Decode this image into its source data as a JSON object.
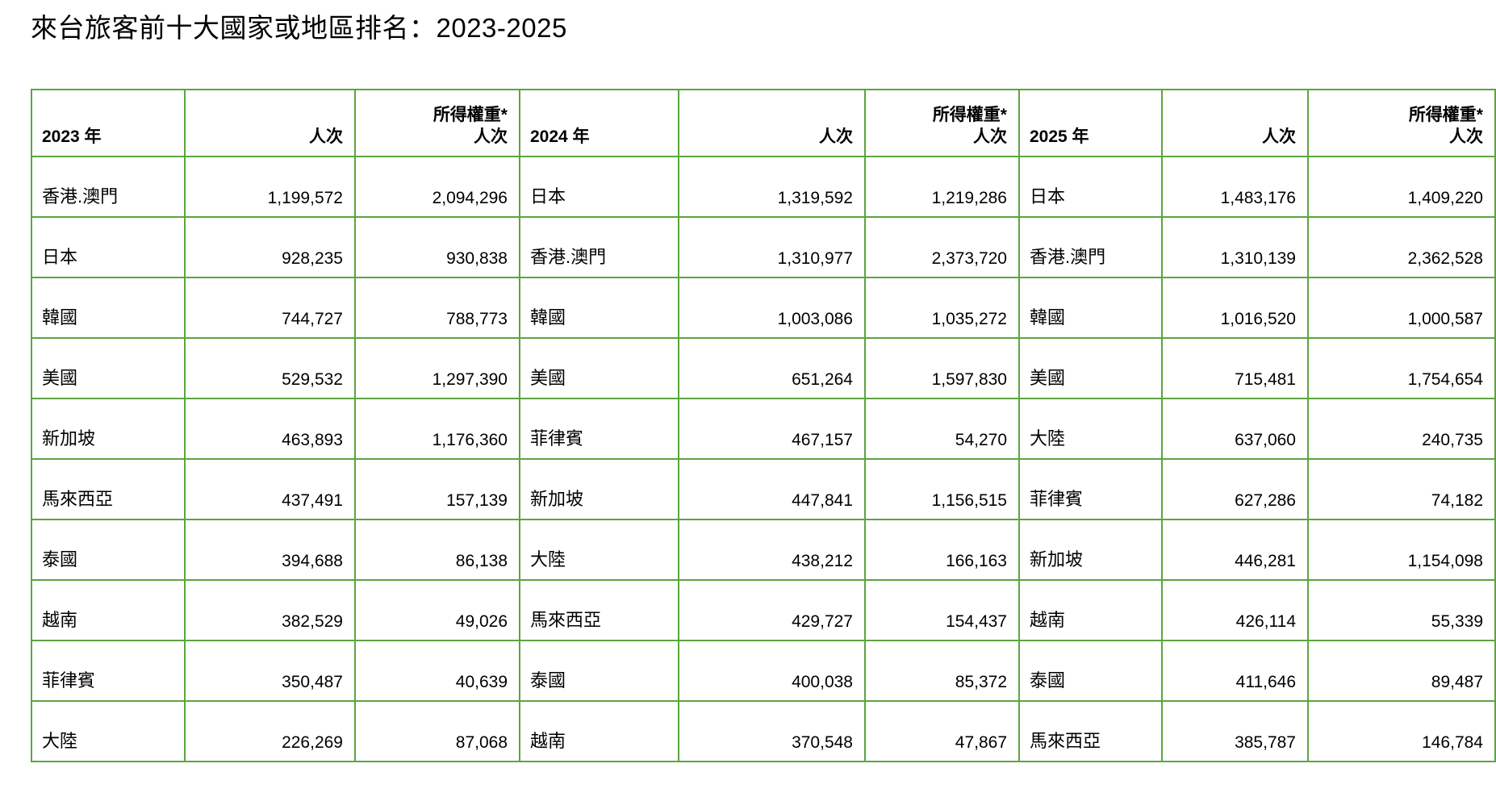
{
  "title": "來台旅客前十大國家或地區排名：2023-2025",
  "table": {
    "blocks": [
      {
        "year_label": "2023 年",
        "count_header": "人次",
        "weighted_header_line1": "所得權重*",
        "weighted_header_line2": "人次",
        "rows": [
          {
            "name": "香港.澳門",
            "count": "1,199,572",
            "weighted": "2,094,296"
          },
          {
            "name": "日本",
            "count": "928,235",
            "weighted": "930,838"
          },
          {
            "name": "韓國",
            "count": "744,727",
            "weighted": "788,773"
          },
          {
            "name": "美國",
            "count": "529,532",
            "weighted": "1,297,390"
          },
          {
            "name": "新加坡",
            "count": "463,893",
            "weighted": "1,176,360"
          },
          {
            "name": "馬來西亞",
            "count": "437,491",
            "weighted": "157,139"
          },
          {
            "name": "泰國",
            "count": "394,688",
            "weighted": "86,138"
          },
          {
            "name": "越南",
            "count": "382,529",
            "weighted": "49,026"
          },
          {
            "name": "菲律賓",
            "count": "350,487",
            "weighted": "40,639"
          },
          {
            "name": "大陸",
            "count": "226,269",
            "weighted": "87,068"
          }
        ]
      },
      {
        "year_label": "2024 年",
        "count_header": "人次",
        "weighted_header_line1": "所得權重*",
        "weighted_header_line2": "人次",
        "rows": [
          {
            "name": "日本",
            "count": "1,319,592",
            "weighted": "1,219,286"
          },
          {
            "name": "香港.澳門",
            "count": "1,310,977",
            "weighted": "2,373,720"
          },
          {
            "name": "韓國",
            "count": "1,003,086",
            "weighted": "1,035,272"
          },
          {
            "name": "美國",
            "count": "651,264",
            "weighted": "1,597,830"
          },
          {
            "name": "菲律賓",
            "count": "467,157",
            "weighted": "54,270"
          },
          {
            "name": "新加坡",
            "count": "447,841",
            "weighted": "1,156,515"
          },
          {
            "name": "大陸",
            "count": "438,212",
            "weighted": "166,163"
          },
          {
            "name": "馬來西亞",
            "count": "429,727",
            "weighted": "154,437"
          },
          {
            "name": "泰國",
            "count": "400,038",
            "weighted": "85,372"
          },
          {
            "name": "越南",
            "count": "370,548",
            "weighted": "47,867"
          }
        ]
      },
      {
        "year_label": "2025 年",
        "count_header": "人次",
        "weighted_header_line1": "所得權重*",
        "weighted_header_line2": "人次",
        "rows": [
          {
            "name": "日本",
            "count": "1,483,176",
            "weighted": "1,409,220"
          },
          {
            "name": "香港.澳門",
            "count": "1,310,139",
            "weighted": "2,362,528"
          },
          {
            "name": "韓國",
            "count": "1,016,520",
            "weighted": "1,000,587"
          },
          {
            "name": "美國",
            "count": "715,481",
            "weighted": "1,754,654"
          },
          {
            "name": "大陸",
            "count": "637,060",
            "weighted": "240,735"
          },
          {
            "name": "菲律賓",
            "count": "627,286",
            "weighted": "74,182"
          },
          {
            "name": "新加坡",
            "count": "446,281",
            "weighted": "1,154,098"
          },
          {
            "name": "越南",
            "count": "426,114",
            "weighted": "55,339"
          },
          {
            "name": "泰國",
            "count": "411,646",
            "weighted": "89,487"
          },
          {
            "name": "馬來西亞",
            "count": "385,787",
            "weighted": "146,784"
          }
        ]
      }
    ]
  },
  "colors": {
    "row_band_fill": "#dcedd4",
    "grid_border": "#5ba53f",
    "text": "#000000",
    "background": "#ffffff"
  }
}
